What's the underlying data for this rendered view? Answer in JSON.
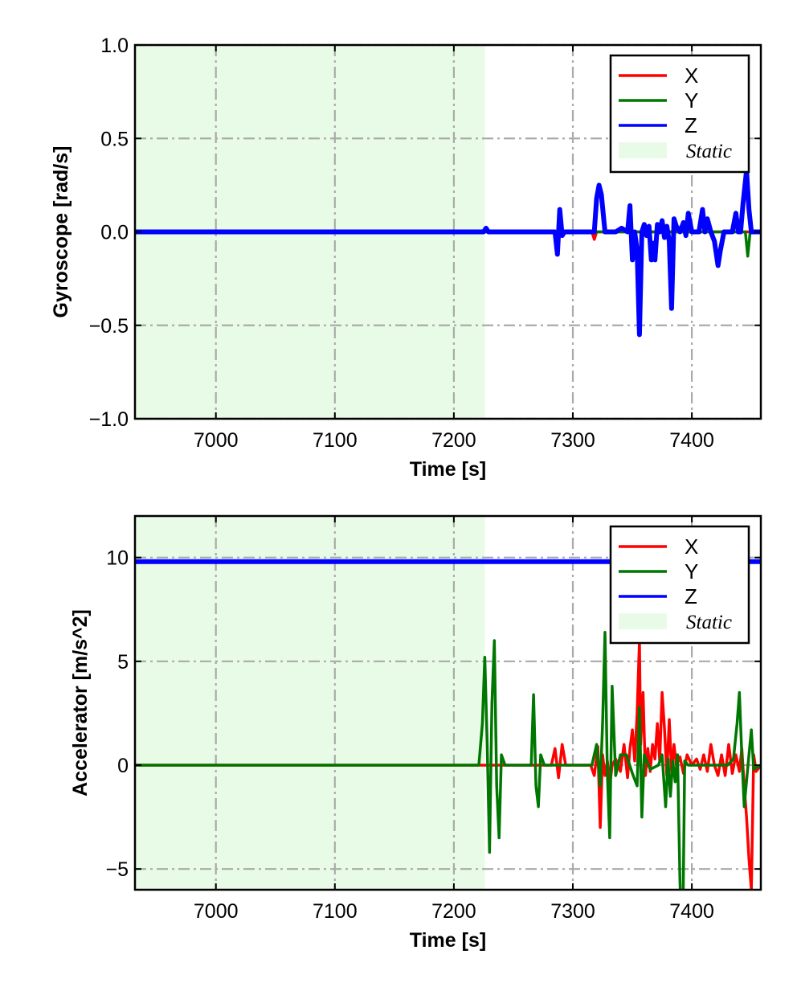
{
  "chart_data": [
    {
      "type": "line",
      "xlabel": "Time [s]",
      "ylabel": "Gyroscope [rad/s]",
      "xlim": [
        6932,
        7458
      ],
      "ylim": [
        -1.0,
        1.0
      ],
      "x_ticks": [
        7000,
        7100,
        7200,
        7300,
        7400
      ],
      "x_tick_labels": [
        "7000",
        "7100",
        "7200",
        "7300",
        "7400"
      ],
      "y_ticks": [
        -1.0,
        -0.5,
        0.0,
        0.5,
        1.0
      ],
      "y_tick_labels": [
        "−1.0",
        "−0.5",
        "0.0",
        "0.5",
        "1.0"
      ],
      "grid": true,
      "legend_position": "top-right",
      "static_region": {
        "label": "Static",
        "x": [
          6932,
          7226
        ],
        "color": "#e8fbe6"
      },
      "series": [
        {
          "name": "X",
          "color": "#ff0000",
          "x": [
            6932,
            7316,
            7318,
            7320,
            7458
          ],
          "y": [
            0.0,
            0.0,
            -0.04,
            0.0,
            0.0
          ]
        },
        {
          "name": "Y",
          "color": "#007700",
          "x": [
            6932,
            7372,
            7374,
            7376,
            7445,
            7447,
            7449,
            7458
          ],
          "y": [
            0.0,
            0.0,
            0.05,
            0.0,
            0.0,
            -0.13,
            0.0,
            0.0
          ]
        },
        {
          "name": "Z",
          "color": "#0000ff",
          "x": [
            6932,
            7225,
            7227,
            7229,
            7285,
            7287,
            7289,
            7291,
            7293,
            7318,
            7320,
            7322,
            7324,
            7327,
            7331,
            7336,
            7341,
            7346,
            7348,
            7350,
            7352,
            7354,
            7356,
            7358,
            7360,
            7362,
            7364,
            7366,
            7368,
            7369,
            7371,
            7373,
            7375,
            7377,
            7379,
            7381,
            7383,
            7385,
            7387,
            7390,
            7393,
            7395,
            7397,
            7400,
            7403,
            7406,
            7409,
            7411,
            7413,
            7416,
            7419,
            7422,
            7424,
            7427,
            7430,
            7434,
            7437,
            7439,
            7441,
            7443,
            7446,
            7448,
            7450,
            7452,
            7458
          ],
          "y": [
            0.0,
            0.0,
            0.02,
            0.0,
            0.0,
            -0.12,
            0.12,
            -0.02,
            0.0,
            0.0,
            0.18,
            0.25,
            0.2,
            0.0,
            0.0,
            0.0,
            0.02,
            0.0,
            0.14,
            -0.15,
            0.0,
            -0.1,
            -0.55,
            0.0,
            0.04,
            -0.02,
            0.03,
            -0.15,
            -0.06,
            -0.15,
            0.04,
            0.0,
            0.06,
            -0.03,
            0.03,
            -0.05,
            -0.41,
            0.07,
            0.03,
            0.0,
            0.05,
            -0.02,
            0.1,
            0.0,
            0.0,
            0.0,
            0.12,
            0.0,
            0.07,
            0.0,
            -0.05,
            -0.18,
            -0.1,
            0.0,
            0.0,
            0.0,
            0.1,
            0.0,
            0.0,
            0.15,
            0.33,
            0.12,
            0.0,
            0.0,
            0.0
          ]
        }
      ]
    },
    {
      "type": "line",
      "xlabel": "Time [s]",
      "ylabel": "Accelerator [m/s^2]",
      "xlim": [
        6932,
        7458
      ],
      "ylim": [
        -6.0,
        12.0
      ],
      "x_ticks": [
        7000,
        7100,
        7200,
        7300,
        7400
      ],
      "x_tick_labels": [
        "7000",
        "7100",
        "7200",
        "7300",
        "7400"
      ],
      "y_ticks": [
        -5,
        0,
        5,
        10
      ],
      "y_tick_labels": [
        "−5",
        "0",
        "5",
        "10"
      ],
      "grid": true,
      "legend_position": "top-right",
      "static_region": {
        "label": "Static",
        "x": [
          6932,
          7226
        ],
        "color": "#e8fbe6"
      },
      "series": [
        {
          "name": "X",
          "color": "#ff0000",
          "x": [
            6932,
            7282,
            7285,
            7288,
            7291,
            7294,
            7315,
            7318,
            7321,
            7323,
            7325,
            7327,
            7329,
            7331,
            7333,
            7336,
            7340,
            7343,
            7346,
            7348,
            7350,
            7352,
            7354,
            7356,
            7357,
            7359,
            7361,
            7363,
            7365,
            7367,
            7369,
            7371,
            7373,
            7375,
            7377,
            7379,
            7381,
            7383,
            7385,
            7387,
            7390,
            7393,
            7396,
            7400,
            7404,
            7407,
            7410,
            7413,
            7416,
            7419,
            7422,
            7425,
            7428,
            7431,
            7434,
            7437,
            7440,
            7442,
            7444,
            7446,
            7448,
            7450,
            7452,
            7454,
            7458
          ],
          "y": [
            0.0,
            0.0,
            0.8,
            -0.6,
            1.0,
            0.0,
            0.0,
            -0.5,
            0.9,
            -3.0,
            0.5,
            -0.5,
            0.2,
            -1.0,
            0.0,
            0.3,
            -0.3,
            1.0,
            -0.6,
            0.8,
            1.7,
            0.2,
            2.5,
            6.0,
            1.0,
            3.5,
            -0.5,
            0.8,
            -0.3,
            1.0,
            0.3,
            2.0,
            0.2,
            3.5,
            1.8,
            -0.5,
            2.2,
            -0.3,
            1.0,
            0.0,
            0.4,
            -0.4,
            0.5,
            0.0,
            0.3,
            -0.2,
            0.5,
            -0.3,
            1.0,
            0.0,
            -0.5,
            0.5,
            -0.5,
            1.0,
            -0.4,
            0.5,
            -0.3,
            0.8,
            -1.0,
            -2.5,
            -4.5,
            -6.0,
            0.5,
            -0.3,
            0.0
          ]
        },
        {
          "name": "Y",
          "color": "#007700",
          "x": [
            6932,
            7221,
            7224,
            7226,
            7228,
            7230,
            7232,
            7234,
            7236,
            7238,
            7240,
            7243,
            7265,
            7267,
            7269,
            7271,
            7273,
            7276,
            7300,
            7316,
            7320,
            7323,
            7325,
            7327,
            7329,
            7331,
            7333,
            7336,
            7340,
            7345,
            7350,
            7354,
            7356,
            7358,
            7360,
            7365,
            7372,
            7375,
            7378,
            7380,
            7382,
            7384,
            7386,
            7388,
            7390,
            7392,
            7394,
            7397,
            7410,
            7420,
            7430,
            7435,
            7438,
            7440,
            7442,
            7444,
            7448,
            7450,
            7452,
            7458
          ],
          "y": [
            0.0,
            0.0,
            2.0,
            5.2,
            1.0,
            -4.2,
            3.0,
            6.0,
            -1.0,
            -3.5,
            0.5,
            0.0,
            0.0,
            3.4,
            -1.0,
            -2.0,
            0.5,
            0.0,
            0.0,
            0.0,
            1.0,
            -1.0,
            2.0,
            6.4,
            -0.5,
            -3.5,
            3.8,
            -0.5,
            0.5,
            0.5,
            -0.4,
            -1.0,
            2.8,
            -2.5,
            0.5,
            -0.2,
            0.0,
            0.5,
            -2.0,
            0.3,
            -1.5,
            0.2,
            -0.8,
            0.5,
            -5.5,
            -10.0,
            0.2,
            0.0,
            0.0,
            0.0,
            0.0,
            0.3,
            2.0,
            3.5,
            0.5,
            -2.0,
            0.5,
            1.7,
            -0.2,
            0.0
          ]
        },
        {
          "name": "Z",
          "color": "#0000ff",
          "x": [
            6932,
            7458
          ],
          "y": [
            9.8,
            9.8
          ]
        }
      ]
    }
  ]
}
